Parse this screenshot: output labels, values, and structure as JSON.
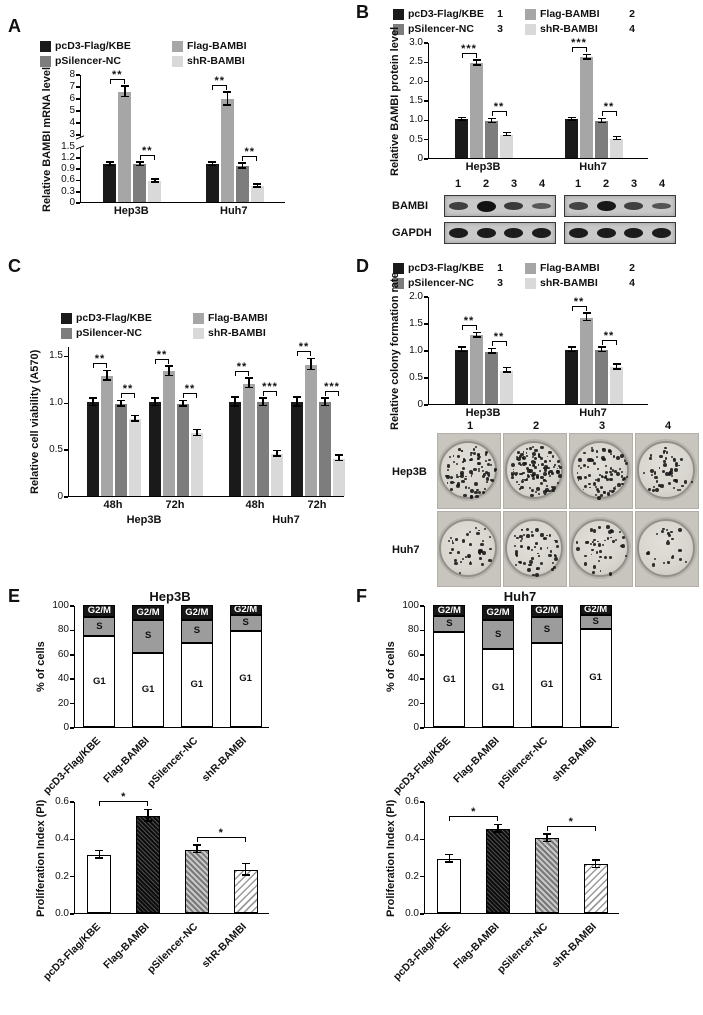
{
  "panels": {
    "A": "A",
    "B": "B",
    "C": "C",
    "D": "D",
    "E": "E",
    "F": "F"
  },
  "colors": {
    "pcD3-Flag/KBE": "#1a1a1a",
    "Flag-BAMBI": "#a6a6a6",
    "pSilencer-NC": "#7d7d7d",
    "shR-BAMBI": "#d9d9d9"
  },
  "chart_data": [
    {
      "id": "A",
      "type": "bar",
      "ylabel": "Relative BAMBI mRNA level",
      "categories": [
        "Hep3B",
        "Huh7"
      ],
      "series": [
        {
          "name": "pcD3-Flag/KBE",
          "values": [
            1.0,
            1.0
          ],
          "errors": [
            0.05,
            0.05
          ]
        },
        {
          "name": "Flag-BAMBI",
          "values": [
            6.5,
            5.9
          ],
          "errors": [
            0.45,
            0.55
          ]
        },
        {
          "name": "pSilencer-NC",
          "values": [
            1.0,
            0.95
          ],
          "errors": [
            0.05,
            0.07
          ]
        },
        {
          "name": "shR-BAMBI",
          "values": [
            0.55,
            0.42
          ],
          "errors": [
            0.04,
            0.04
          ]
        }
      ],
      "axis": {
        "break": true,
        "segments": [
          {
            "v0": 0,
            "v1": 1.5,
            "f0": 0,
            "f1": 0.44
          },
          {
            "v0": 3,
            "v1": 8,
            "f0": 0.53,
            "f1": 1
          }
        ],
        "ticks": [
          {
            "v": 0,
            "label": "0"
          },
          {
            "v": 0.3,
            "label": "0.3"
          },
          {
            "v": 0.6,
            "label": "0.6"
          },
          {
            "v": 0.9,
            "label": "0.9"
          },
          {
            "v": 1.2,
            "label": "1.2"
          },
          {
            "v": 1.5,
            "label": "1.5"
          },
          {
            "v": 3,
            "label": "3"
          },
          {
            "v": 4,
            "label": "4"
          },
          {
            "v": 5,
            "label": "5"
          },
          {
            "v": 6,
            "label": "6"
          },
          {
            "v": 7,
            "label": "7"
          },
          {
            "v": 8,
            "label": "8"
          }
        ]
      },
      "legend": {
        "rows": [
          [
            {
              "label": "pcD3-Flag/KBE"
            },
            {
              "label": "Flag-BAMBI"
            }
          ],
          [
            {
              "label": "pSilencer-NC"
            },
            {
              "label": "shR-BAMBI"
            }
          ]
        ]
      },
      "sig": [
        {
          "cat": 0,
          "a": 0,
          "b": 1,
          "label": "**"
        },
        {
          "cat": 0,
          "a": 2,
          "b": 3,
          "label": "**"
        },
        {
          "cat": 1,
          "a": 0,
          "b": 1,
          "label": "**"
        },
        {
          "cat": 1,
          "a": 2,
          "b": 3,
          "label": "**"
        }
      ]
    },
    {
      "id": "B",
      "type": "bar",
      "ylabel": "Relative BAMBI protein level",
      "categories": [
        "Hep3B",
        "Huh7"
      ],
      "series": [
        {
          "name": "pcD3-Flag/KBE",
          "values": [
            1.0,
            1.0
          ],
          "errors": [
            0.03,
            0.03
          ]
        },
        {
          "name": "Flag-BAMBI",
          "values": [
            2.45,
            2.6
          ],
          "errors": [
            0.07,
            0.06
          ]
        },
        {
          "name": "pSilencer-NC",
          "values": [
            0.95,
            0.95
          ],
          "errors": [
            0.05,
            0.05
          ]
        },
        {
          "name": "shR-BAMBI",
          "values": [
            0.6,
            0.5
          ],
          "errors": [
            0.04,
            0.04
          ]
        }
      ],
      "axis": {
        "max": 3.0,
        "ticks": [
          {
            "v": 0,
            "label": "0"
          },
          {
            "v": 0.5,
            "label": "0.5"
          },
          {
            "v": 1.0,
            "label": "1.0"
          },
          {
            "v": 1.5,
            "label": "1.5"
          },
          {
            "v": 2.0,
            "label": "2.0"
          },
          {
            "v": 2.5,
            "label": "2.5"
          },
          {
            "v": 3.0,
            "label": "3.0"
          }
        ]
      },
      "legend": {
        "rows": [
          [
            {
              "label": "pcD3-Flag/KBE",
              "num": "1"
            },
            {
              "label": "Flag-BAMBI",
              "num": "2"
            }
          ],
          [
            {
              "label": "pSilencer-NC",
              "num": "3"
            },
            {
              "label": "shR-BAMBI",
              "num": "4"
            }
          ]
        ]
      },
      "sig": [
        {
          "cat": 0,
          "a": 0,
          "b": 1,
          "label": "***"
        },
        {
          "cat": 0,
          "a": 2,
          "b": 3,
          "label": "**"
        },
        {
          "cat": 1,
          "a": 0,
          "b": 1,
          "label": "***"
        },
        {
          "cat": 1,
          "a": 2,
          "b": 3,
          "label": "**"
        }
      ]
    },
    {
      "id": "C",
      "type": "bar",
      "ylabel": "Relative cell viability (A570)",
      "categories": [
        "48h",
        "72h",
        "48h",
        "72h"
      ],
      "group_labels": [
        {
          "label": "Hep3B",
          "from": 0,
          "to": 1
        },
        {
          "label": "Huh7",
          "from": 2,
          "to": 3
        }
      ],
      "series": [
        {
          "name": "pcD3-Flag/KBE",
          "values": [
            1.0,
            1.0,
            1.0,
            1.0
          ],
          "errors": [
            0.04,
            0.04,
            0.05,
            0.05
          ]
        },
        {
          "name": "Flag-BAMBI",
          "values": [
            1.28,
            1.33,
            1.2,
            1.4
          ],
          "errors": [
            0.05,
            0.05,
            0.05,
            0.06
          ]
        },
        {
          "name": "pSilencer-NC",
          "values": [
            0.98,
            0.98,
            1.0,
            1.0
          ],
          "errors": [
            0.03,
            0.03,
            0.04,
            0.04
          ]
        },
        {
          "name": "shR-BAMBI",
          "values": [
            0.82,
            0.67,
            0.45,
            0.4
          ],
          "errors": [
            0.03,
            0.03,
            0.03,
            0.03
          ]
        }
      ],
      "axis": {
        "max": 1.6,
        "ticks": [
          {
            "v": 0,
            "label": "0"
          },
          {
            "v": 0.5,
            "label": "0.5"
          },
          {
            "v": 1.0,
            "label": "1.0"
          },
          {
            "v": 1.5,
            "label": "1.5"
          }
        ]
      },
      "legend": {
        "rows": [
          [
            {
              "label": "pcD3-Flag/KBE"
            },
            {
              "label": "Flag-BAMBI"
            }
          ],
          [
            {
              "label": "pSilencer-NC"
            },
            {
              "label": "shR-BAMBI"
            }
          ]
        ]
      },
      "sig": [
        {
          "cat": 0,
          "a": 0,
          "b": 1,
          "label": "**"
        },
        {
          "cat": 0,
          "a": 2,
          "b": 3,
          "label": "**"
        },
        {
          "cat": 1,
          "a": 0,
          "b": 1,
          "label": "**"
        },
        {
          "cat": 1,
          "a": 2,
          "b": 3,
          "label": "**"
        },
        {
          "cat": 2,
          "a": 0,
          "b": 1,
          "label": "**"
        },
        {
          "cat": 2,
          "a": 2,
          "b": 3,
          "label": "***"
        },
        {
          "cat": 3,
          "a": 0,
          "b": 1,
          "label": "**"
        },
        {
          "cat": 3,
          "a": 2,
          "b": 3,
          "label": "***"
        }
      ]
    },
    {
      "id": "D",
      "type": "bar",
      "ylabel": "Relative colony formation rate",
      "categories": [
        "Hep3B",
        "Huh7"
      ],
      "series": [
        {
          "name": "pcD3-Flag/KBE",
          "values": [
            1.0,
            1.0
          ],
          "errors": [
            0.04,
            0.04
          ]
        },
        {
          "name": "Flag-BAMBI",
          "values": [
            1.27,
            1.6
          ],
          "errors": [
            0.04,
            0.07
          ]
        },
        {
          "name": "pSilencer-NC",
          "values": [
            0.97,
            1.0
          ],
          "errors": [
            0.04,
            0.04
          ]
        },
        {
          "name": "shR-BAMBI",
          "values": [
            0.62,
            0.68
          ],
          "errors": [
            0.04,
            0.05
          ]
        }
      ],
      "axis": {
        "max": 2.0,
        "ticks": [
          {
            "v": 0,
            "label": "0"
          },
          {
            "v": 0.5,
            "label": "0.5"
          },
          {
            "v": 1.0,
            "label": "1.0"
          },
          {
            "v": 1.5,
            "label": "1.5"
          },
          {
            "v": 2.0,
            "label": "2.0"
          }
        ]
      },
      "legend": {
        "rows": [
          [
            {
              "label": "pcD3-Flag/KBE",
              "num": "1"
            },
            {
              "label": "Flag-BAMBI",
              "num": "2"
            }
          ],
          [
            {
              "label": "pSilencer-NC",
              "num": "3"
            },
            {
              "label": "shR-BAMBI",
              "num": "4"
            }
          ]
        ]
      },
      "sig": [
        {
          "cat": 0,
          "a": 0,
          "b": 1,
          "label": "**"
        },
        {
          "cat": 0,
          "a": 2,
          "b": 3,
          "label": "**"
        },
        {
          "cat": 1,
          "a": 0,
          "b": 1,
          "label": "**"
        },
        {
          "cat": 1,
          "a": 2,
          "b": 3,
          "label": "**"
        }
      ]
    },
    {
      "id": "E1",
      "type": "stacked_bar",
      "title": "Hep3B",
      "ylabel": "% of cells",
      "categories": [
        "pcD3-Flag/KBE",
        "Flag-BAMBI",
        "pSilencer-NC",
        "shR-BAMBI"
      ],
      "series": [
        {
          "name": "G1",
          "values": [
            75,
            61,
            69,
            79
          ]
        },
        {
          "name": "S",
          "values": [
            15,
            27,
            19,
            13
          ]
        },
        {
          "name": "G2/M",
          "values": [
            10,
            12,
            12,
            8
          ]
        }
      ],
      "axis": {
        "max": 100,
        "ticks": [
          {
            "v": 0,
            "label": "0"
          },
          {
            "v": 20,
            "label": "20"
          },
          {
            "v": 40,
            "label": "40"
          },
          {
            "v": 60,
            "label": "60"
          },
          {
            "v": 80,
            "label": "80"
          },
          {
            "v": 100,
            "label": "100"
          }
        ]
      },
      "rotate_labels": true
    },
    {
      "id": "E2",
      "type": "bar",
      "ylabel": "Proliferation Index (PI)",
      "categories": [
        "pcD3-Flag/KBE",
        "Flag-BAMBI",
        "pSilencer-NC",
        "shR-BAMBI"
      ],
      "series": [
        {
          "name": "PI",
          "values": [
            0.31,
            0.52,
            0.34,
            0.23
          ],
          "errors": [
            0.02,
            0.03,
            0.02,
            0.03
          ]
        }
      ],
      "fills": [
        "white",
        "dark-hatch",
        "gray-hatch",
        "light-hatch"
      ],
      "axis": {
        "max": 0.6,
        "ticks": [
          {
            "v": 0,
            "label": "0.0"
          },
          {
            "v": 0.2,
            "label": "0.2"
          },
          {
            "v": 0.4,
            "label": "0.4"
          },
          {
            "v": 0.6,
            "label": "0.6"
          }
        ]
      },
      "rotate_labels": true,
      "sig": [
        {
          "a": 0,
          "b": 1,
          "label": "*"
        },
        {
          "a": 2,
          "b": 3,
          "label": "*"
        }
      ]
    },
    {
      "id": "F1",
      "type": "stacked_bar",
      "title": "Huh7",
      "ylabel": "% of cells",
      "categories": [
        "pcD3-Flag/KBE",
        "Flag-BAMBI",
        "pSilencer-NC",
        "shR-BAMBI"
      ],
      "series": [
        {
          "name": "G1",
          "values": [
            78,
            64,
            69,
            80
          ]
        },
        {
          "name": "S",
          "values": [
            13,
            24,
            21,
            12
          ]
        },
        {
          "name": "G2/M",
          "values": [
            9,
            12,
            10,
            8
          ]
        }
      ],
      "axis": {
        "max": 100,
        "ticks": [
          {
            "v": 0,
            "label": "0"
          },
          {
            "v": 20,
            "label": "20"
          },
          {
            "v": 40,
            "label": "40"
          },
          {
            "v": 60,
            "label": "60"
          },
          {
            "v": 80,
            "label": "80"
          },
          {
            "v": 100,
            "label": "100"
          }
        ]
      },
      "rotate_labels": true
    },
    {
      "id": "F2",
      "type": "bar",
      "ylabel": "Proliferation Index (PI)",
      "categories": [
        "pcD3-Flag/KBE",
        "Flag-BAMBI",
        "pSilencer-NC",
        "shR-BAMBI"
      ],
      "series": [
        {
          "name": "PI",
          "values": [
            0.29,
            0.45,
            0.4,
            0.26
          ],
          "errors": [
            0.02,
            0.02,
            0.02,
            0.02
          ]
        }
      ],
      "fills": [
        "white",
        "dark-hatch",
        "gray-hatch",
        "light-hatch"
      ],
      "axis": {
        "max": 0.6,
        "ticks": [
          {
            "v": 0,
            "label": "0.0"
          },
          {
            "v": 0.2,
            "label": "0.2"
          },
          {
            "v": 0.4,
            "label": "0.4"
          },
          {
            "v": 0.6,
            "label": "0.6"
          }
        ]
      },
      "rotate_labels": true,
      "sig": [
        {
          "a": 0,
          "b": 1,
          "label": "*"
        },
        {
          "a": 2,
          "b": 3,
          "label": "*"
        }
      ]
    }
  ],
  "blot": {
    "lanes": [
      "1",
      "2",
      "3",
      "4"
    ],
    "rows": [
      {
        "label": "BAMBI",
        "bands": [
          [
            0.55,
            1.0,
            0.6,
            0.3
          ],
          [
            0.5,
            0.95,
            0.55,
            0.35
          ]
        ]
      },
      {
        "label": "GAPDH",
        "bands": [
          [
            0.9,
            0.9,
            0.9,
            0.9
          ],
          [
            0.9,
            0.9,
            0.9,
            0.9
          ]
        ]
      }
    ]
  },
  "colony": {
    "lanes": [
      "1",
      "2",
      "3",
      "4"
    ],
    "rows": [
      {
        "label": "Hep3B",
        "colonies": [
          85,
          115,
          80,
          48
        ]
      },
      {
        "label": "Huh7",
        "colonies": [
          38,
          58,
          42,
          22
        ]
      }
    ]
  }
}
